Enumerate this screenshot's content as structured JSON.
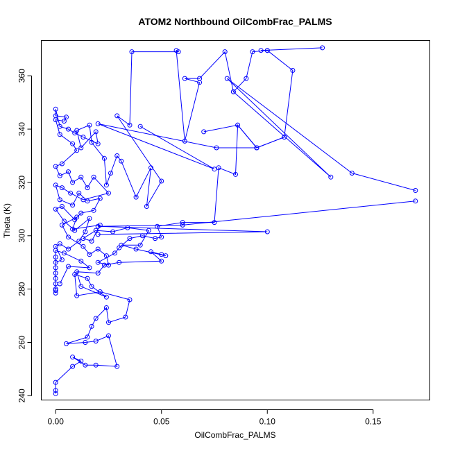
{
  "chart_data": {
    "type": "scatter",
    "title": "ATOM2 Northbound OilCombFrac_PALMS",
    "xlabel": "OilCombFrac_PALMS",
    "ylabel": "Theta (K)",
    "xlim": [
      -0.0068,
      0.1768
    ],
    "ylim": [
      238.4,
      373.2
    ],
    "x_ticks": [
      0,
      0.05,
      0.1,
      0.15
    ],
    "x_tick_labels": [
      "0.00",
      "0.05",
      "0.10",
      "0.15"
    ],
    "y_ticks": [
      240,
      260,
      280,
      300,
      320,
      340,
      360
    ],
    "y_tick_labels": [
      "240",
      "260",
      "280",
      "300",
      "320",
      "340",
      "360"
    ],
    "grid": false,
    "color": "#0000ff",
    "series": [
      {
        "points": [
          [
            0.0,
            240.8
          ],
          [
            0.0,
            242.0
          ],
          [
            0.0,
            245.0
          ],
          [
            0.008,
            251.0
          ],
          [
            0.012,
            253.0
          ],
          [
            0.008,
            254.5
          ],
          [
            0.014,
            251.5
          ],
          [
            0.019,
            251.5
          ],
          [
            0.029,
            251.0
          ],
          [
            0.025,
            262.5
          ],
          [
            0.019,
            260.5
          ],
          [
            0.014,
            260.0
          ],
          [
            0.005,
            259.5
          ],
          [
            0.015,
            262.0
          ],
          [
            0.017,
            266.0
          ],
          [
            0.019,
            269.0
          ],
          [
            0.024,
            273.0
          ],
          [
            0.025,
            267.5
          ],
          [
            0.033,
            269.5
          ],
          [
            0.035,
            276.0
          ],
          [
            0.021,
            279.0
          ],
          [
            0.01,
            277.5
          ],
          [
            0.009,
            285.5
          ],
          [
            0.015,
            284.0
          ],
          [
            0.017,
            281.0
          ],
          [
            0.024,
            277.0
          ],
          [
            0.012,
            281.0
          ],
          [
            0.01,
            286.5
          ],
          [
            0.02,
            286.0
          ],
          [
            0.023,
            289.0
          ],
          [
            0.03,
            290.0
          ],
          [
            0.05,
            290.5
          ],
          [
            0.045,
            294.0
          ],
          [
            0.05,
            293.0
          ],
          [
            0.052,
            292.5
          ],
          [
            0.038,
            295.0
          ],
          [
            0.031,
            296.5
          ],
          [
            0.04,
            296.5
          ],
          [
            0.044,
            302.0
          ],
          [
            0.034,
            303.0
          ],
          [
            0.027,
            301.5
          ],
          [
            0.019,
            302.0
          ],
          [
            0.013,
            299.0
          ],
          [
            0.017,
            298.0
          ],
          [
            0.021,
            304.0
          ],
          [
            0.008,
            302.5
          ],
          [
            0.01,
            307.0
          ],
          [
            0.003,
            304.0
          ],
          [
            0.006,
            299.5
          ],
          [
            0.013,
            296.0
          ],
          [
            0.016,
            293.0
          ],
          [
            0.02,
            295.0
          ],
          [
            0.024,
            292.5
          ],
          [
            0.025,
            289.0
          ],
          [
            0.02,
            290.0
          ],
          [
            0.028,
            293.5
          ],
          [
            0.03,
            295.5
          ],
          [
            0.035,
            299.0
          ],
          [
            0.041,
            300.0
          ],
          [
            0.047,
            299.0
          ],
          [
            0.05,
            299.5
          ],
          [
            0.048,
            303.5
          ],
          [
            0.06,
            305.0
          ],
          [
            0.075,
            305.0
          ],
          [
            0.077,
            325.5
          ],
          [
            0.085,
            323.0
          ],
          [
            0.086,
            341.5
          ],
          [
            0.095,
            333.0
          ],
          [
            0.108,
            337.0
          ],
          [
            0.112,
            362.0
          ],
          [
            0.1,
            369.5
          ],
          [
            0.093,
            369.0
          ],
          [
            0.09,
            359.0
          ],
          [
            0.084,
            354.0
          ],
          [
            0.08,
            369.0
          ],
          [
            0.068,
            359.0
          ],
          [
            0.061,
            359.0
          ],
          [
            0.068,
            357.5
          ],
          [
            0.061,
            335.5
          ],
          [
            0.057,
            369.5
          ],
          [
            0.058,
            369.0
          ],
          [
            0.036,
            369.0
          ],
          [
            0.035,
            341.5
          ],
          [
            0.029,
            345.0
          ],
          [
            0.05,
            320.5
          ],
          [
            0.043,
            311.0
          ],
          [
            0.045,
            325.5
          ],
          [
            0.038,
            314.5
          ],
          [
            0.031,
            328.0
          ],
          [
            0.029,
            330.0
          ],
          [
            0.026,
            323.5
          ],
          [
            0.024,
            319.0
          ],
          [
            0.023,
            329.0
          ],
          [
            0.017,
            335.0
          ],
          [
            0.016,
            341.5
          ],
          [
            0.01,
            339.5
          ],
          [
            0.012,
            333.0
          ],
          [
            0.019,
            339.0
          ],
          [
            0.02,
            334.5
          ],
          [
            0.013,
            337.0
          ],
          [
            0.009,
            338.5
          ],
          [
            0.006,
            340.0
          ],
          [
            0.002,
            341.0
          ],
          [
            0.0,
            347.5
          ],
          [
            0.0,
            345.0
          ],
          [
            0.005,
            344.5
          ],
          [
            0.004,
            343.0
          ],
          [
            0.0,
            343.5
          ],
          [
            0.002,
            338.0
          ],
          [
            0.008,
            334.5
          ],
          [
            0.01,
            332.0
          ],
          [
            0.003,
            327.0
          ],
          [
            0.0,
            326.0
          ],
          [
            0.002,
            322.5
          ],
          [
            0.006,
            324.0
          ],
          [
            0.008,
            320.0
          ],
          [
            0.012,
            322.0
          ],
          [
            0.015,
            318.0
          ],
          [
            0.018,
            322.0
          ],
          [
            0.025,
            316.0
          ],
          [
            0.013,
            313.5
          ],
          [
            0.007,
            316.0
          ],
          [
            0.003,
            318.0
          ],
          [
            0.0,
            319.0
          ],
          [
            0.002,
            313.5
          ],
          [
            0.008,
            311.5
          ],
          [
            0.011,
            316.0
          ],
          [
            0.015,
            313.0
          ],
          [
            0.021,
            314.0
          ],
          [
            0.018,
            309.5
          ],
          [
            0.012,
            308.5
          ],
          [
            0.009,
            306.0
          ],
          [
            0.003,
            311.0
          ],
          [
            0.0,
            310.0
          ],
          [
            0.004,
            305.5
          ],
          [
            0.009,
            302.0
          ],
          [
            0.016,
            306.5
          ],
          [
            0.014,
            301.5
          ],
          [
            0.011,
            298.0
          ],
          [
            0.006,
            295.0
          ],
          [
            0.002,
            297.0
          ],
          [
            0.0,
            296.0
          ],
          [
            0.003,
            291.0
          ],
          [
            0.0,
            290.0
          ],
          [
            0.0,
            288.0
          ],
          [
            0.0,
            286.0
          ],
          [
            0.0,
            284.0
          ],
          [
            0.0,
            282.0
          ],
          [
            0.0,
            280.0
          ],
          [
            0.0,
            278.5
          ],
          [
            0.0,
            279.5
          ],
          [
            0.0,
            292.0
          ],
          [
            0.0,
            294.5
          ],
          [
            0.004,
            293.5
          ],
          [
            0.012,
            290.5
          ],
          [
            0.016,
            288.0
          ],
          [
            0.006,
            288.5
          ],
          [
            0.002,
            282.0
          ]
        ]
      },
      {
        "points": [
          [
            0.07,
            339.0
          ],
          [
            0.086,
            341.5
          ],
          [
            0.095,
            333.0
          ],
          [
            0.108,
            337.0
          ]
        ]
      },
      {
        "points": [
          [
            0.126,
            370.5
          ],
          [
            0.097,
            369.5
          ],
          [
            0.1,
            369.5
          ]
        ]
      },
      {
        "points": [
          [
            0.084,
            354.0
          ],
          [
            0.13,
            322.0
          ],
          [
            0.081,
            359.0
          ],
          [
            0.14,
            323.5
          ],
          [
            0.17,
            317.0
          ]
        ]
      },
      {
        "points": [
          [
            0.095,
            333.0
          ],
          [
            0.076,
            333.0
          ],
          [
            0.02,
            342.0
          ],
          [
            0.075,
            325.0
          ],
          [
            0.04,
            341.0
          ]
        ]
      },
      {
        "points": [
          [
            0.17,
            313.0
          ],
          [
            0.06,
            304.0
          ],
          [
            0.02,
            303.5
          ],
          [
            0.1,
            301.5
          ],
          [
            0.02,
            300.5
          ]
        ]
      }
    ]
  }
}
